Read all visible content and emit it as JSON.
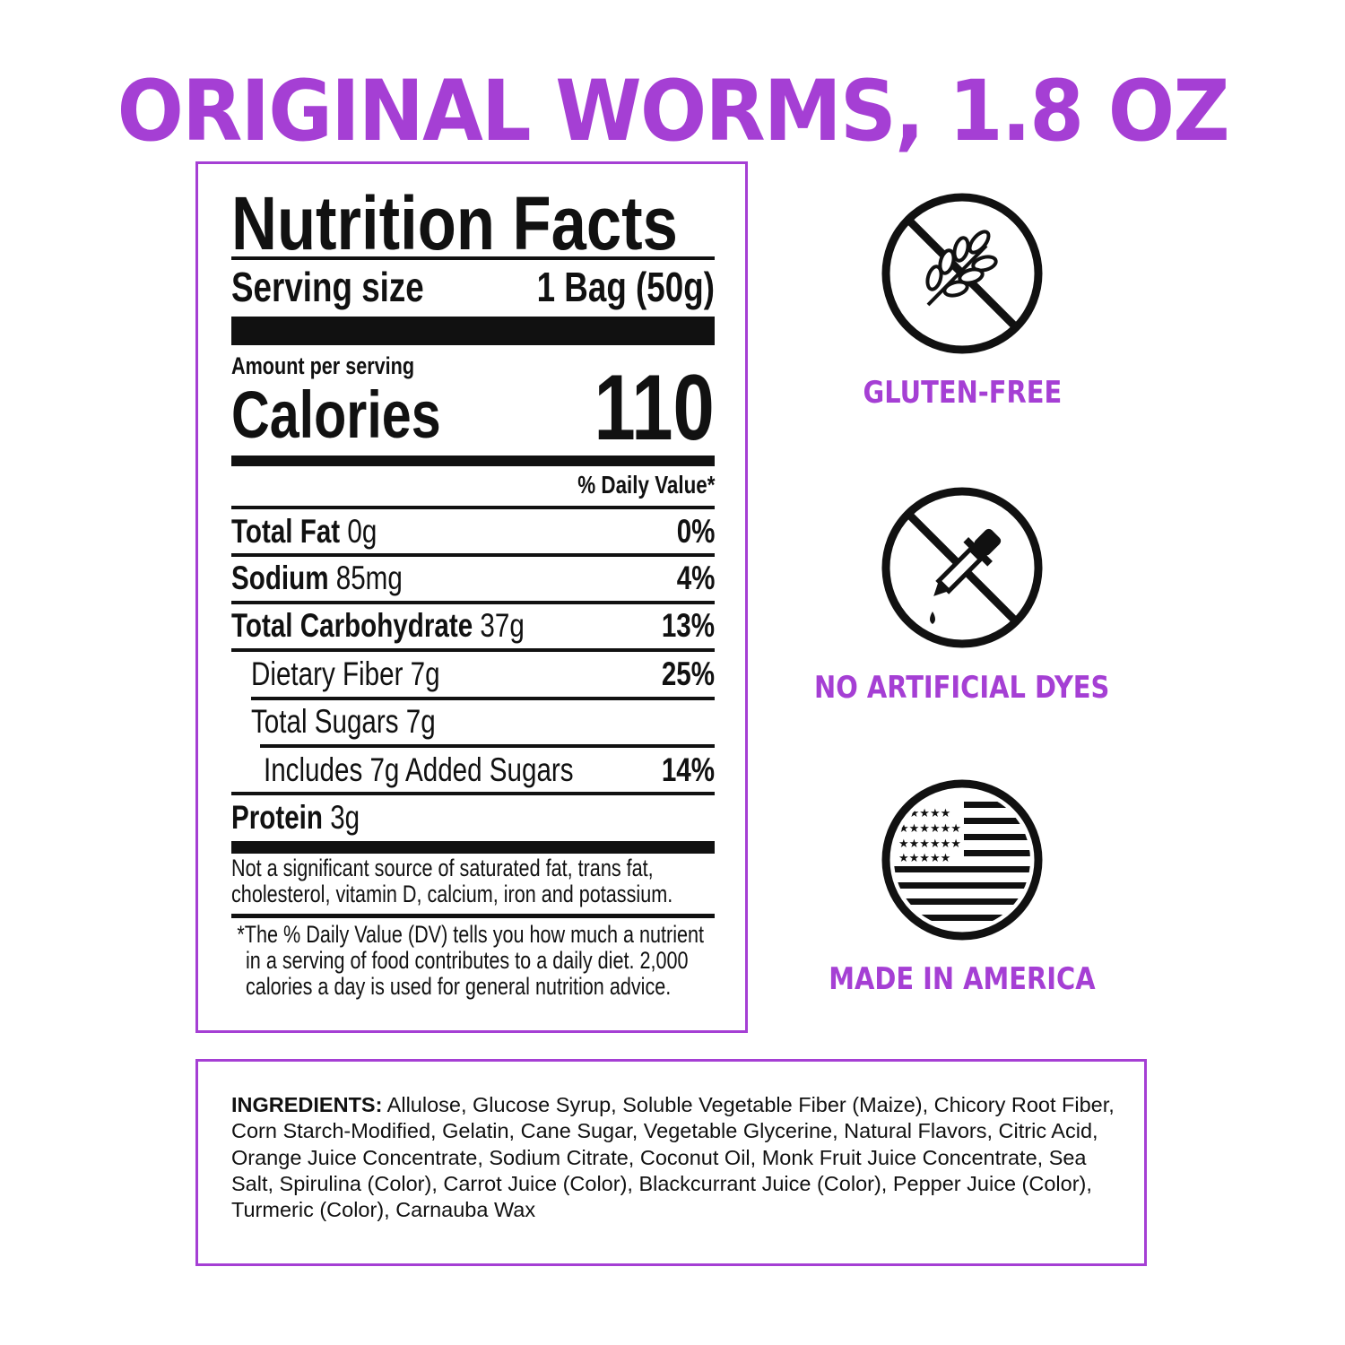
{
  "title": "ORIGINAL WORMS, 1.8 OZ",
  "brand_color": "#a53fd4",
  "nutrition": {
    "heading": "Nutrition Facts",
    "serving_size_label": "Serving size",
    "serving_size_value": "1 Bag (50g)",
    "amount_per_serving": "Amount per serving",
    "calories_label": "Calories",
    "calories_value": "110",
    "daily_value_header": "% Daily Value*",
    "rows": [
      {
        "label": "Total Fat",
        "amount": "0g",
        "dv": "0%"
      },
      {
        "label": "Sodium",
        "amount": "85mg",
        "dv": "4%"
      },
      {
        "label": "Total Carbohydrate",
        "amount": "37g",
        "dv": "13%"
      },
      {
        "label": "Dietary Fiber 7g",
        "dv": "25%"
      },
      {
        "label": "Total Sugars 7g"
      },
      {
        "label": "Includes 7g Added Sugars",
        "dv": "14%"
      },
      {
        "label": "Protein",
        "amount": "3g"
      }
    ],
    "footnote_1": "Not a significant source of saturated fat, trans fat, cholesterol, vitamin D, calcium, iron and potassium.",
    "footnote_2": "*The % Daily Value (DV) tells you how much a nutrient in a serving of food contributes to a daily diet. 2,000 calories a day is used for general nutrition advice."
  },
  "badges": [
    {
      "icon": "no-wheat-icon",
      "label": "GLUTEN-FREE"
    },
    {
      "icon": "no-dropper-icon",
      "label": "NO ARTIFICIAL DYES"
    },
    {
      "icon": "us-flag-icon",
      "label": "MADE IN AMERICA"
    }
  ],
  "ingredients": {
    "label": "INGREDIENTS:",
    "text": "Allulose, Glucose Syrup, Soluble Vegetable Fiber (Maize), Chicory Root Fiber, Corn Starch-Modified, Gelatin, Cane Sugar, Vegetable Glycerine, Natural Flavors, Citric Acid, Orange Juice Concentrate, Sodium Citrate, Coconut Oil, Monk Fruit Juice Concentrate, Sea Salt, Spirulina (Color), Carrot Juice (Color), Blackcurrant Juice (Color), Pepper Juice (Color), Turmeric (Color), Carnauba Wax"
  }
}
